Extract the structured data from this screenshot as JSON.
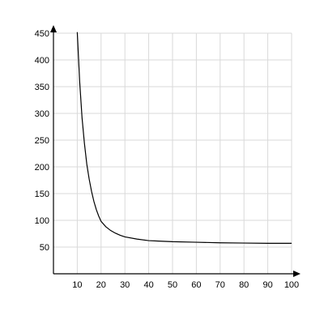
{
  "chart_data": {
    "type": "line",
    "title": "",
    "xlabel": "",
    "ylabel": "",
    "xlim": [
      0,
      100
    ],
    "ylim": [
      0,
      450
    ],
    "x_ticks": [
      10,
      20,
      30,
      40,
      50,
      60,
      70,
      80,
      90,
      100
    ],
    "y_ticks": [
      50,
      100,
      150,
      200,
      250,
      300,
      350,
      400,
      450
    ],
    "x_tick_labels": [
      "10",
      "20",
      "30",
      "40",
      "50",
      "60",
      "70",
      "80",
      "90",
      "100"
    ],
    "y_tick_labels": [
      "50",
      "100",
      "150",
      "200",
      "250",
      "300",
      "350",
      "400",
      "450"
    ],
    "grid": true,
    "line_color": "#000000",
    "grid_color": "#d9d9d9",
    "series": [
      {
        "x": [
          10,
          11,
          12,
          13,
          14,
          15,
          16,
          17,
          18,
          19,
          20,
          22,
          24,
          26,
          28,
          30,
          35,
          40,
          45,
          50,
          60,
          70,
          80,
          90,
          100
        ],
        "y": [
          452,
          360,
          292,
          244,
          205,
          177,
          154,
          135,
          120,
          108,
          98,
          88,
          81,
          76,
          72,
          69,
          65,
          62,
          61,
          60,
          59,
          58,
          57.5,
          57,
          57
        ]
      }
    ]
  }
}
